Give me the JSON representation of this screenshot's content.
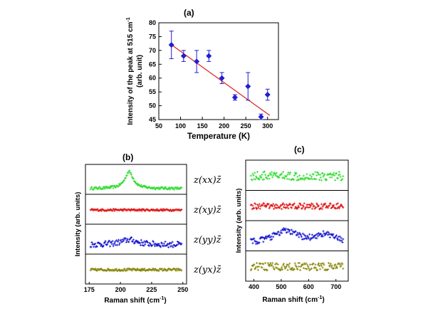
{
  "chart_data": [
    {
      "id": "a",
      "type": "scatter",
      "panel_label": "(a)",
      "xlabel": "Temperature (K)",
      "ylabel_line1": "Intensity of the peak at 515 cm",
      "ylabel_sup": "-1",
      "ylabel_line2": "(arb. unit)",
      "xlim": [
        50,
        325
      ],
      "ylim": [
        45,
        80
      ],
      "xticks": [
        50,
        100,
        150,
        200,
        250,
        300
      ],
      "yticks": [
        45,
        50,
        55,
        60,
        65,
        70,
        75,
        80
      ],
      "points": [
        {
          "x": 79,
          "y": 72,
          "err": 5
        },
        {
          "x": 107,
          "y": 68,
          "err": 2
        },
        {
          "x": 137,
          "y": 66,
          "err": 4
        },
        {
          "x": 165,
          "y": 68,
          "err": 2
        },
        {
          "x": 195,
          "y": 60,
          "err": 2
        },
        {
          "x": 225,
          "y": 53,
          "err": 1
        },
        {
          "x": 255,
          "y": 57,
          "err": 5
        },
        {
          "x": 285,
          "y": 46,
          "err": 1
        },
        {
          "x": 300,
          "y": 54,
          "err": 2
        }
      ],
      "fit_line": {
        "x": [
          75,
          305
        ],
        "y": [
          72.5,
          46.5
        ]
      },
      "marker_color": "#1f1fd0",
      "fit_color": "#e02020"
    },
    {
      "id": "b",
      "type": "stacked-spectra",
      "panel_label": "(b)",
      "xlabel": "Raman shift (cm",
      "xlabel_sup": "-1",
      "xlabel_end": ")",
      "ylabel": "Intensity (arb. units)",
      "xlim": [
        172,
        253
      ],
      "xticks": [
        175,
        200,
        225,
        250
      ],
      "spectra": [
        {
          "geometry": "z(xx)z̄",
          "color": "#33dd33",
          "baseline": 0.15,
          "noise": 0.05,
          "peaks": [
            {
              "center": 207,
              "width": 4,
              "height": 0.7
            }
          ]
        },
        {
          "geometry": "z(xy)z̄",
          "color": "#e01818",
          "baseline": 0.5,
          "noise": 0.04,
          "peaks": []
        },
        {
          "geometry": "z(yy)z̄",
          "color": "#1a1ad0",
          "baseline": 0.3,
          "noise": 0.12,
          "peaks": [
            {
              "center": 207,
              "width": 8,
              "height": 0.2
            }
          ]
        },
        {
          "geometry": "z(yx)z̄",
          "color": "#8a8a10",
          "baseline": 0.5,
          "noise": 0.05,
          "peaks": []
        }
      ]
    },
    {
      "id": "c",
      "type": "stacked-spectra",
      "panel_label": "(c)",
      "xlabel": "Raman shift (cm",
      "xlabel_sup": "-1",
      "xlabel_end": ")",
      "ylabel": "Intensity (arb. units)",
      "xlim": [
        370,
        745
      ],
      "xticks": [
        400,
        500,
        600,
        700
      ],
      "spectra": [
        {
          "color": "#33dd33",
          "baseline": 0.5,
          "noise": 0.18,
          "peaks": []
        },
        {
          "color": "#e01818",
          "baseline": 0.5,
          "noise": 0.12,
          "peaks": []
        },
        {
          "color": "#1a1ad0",
          "baseline": 0.2,
          "noise": 0.12,
          "peaks": [
            {
              "center": 515,
              "width": 55,
              "height": 0.5
            },
            {
              "center": 660,
              "width": 45,
              "height": 0.35
            }
          ]
        },
        {
          "color": "#8a8a10",
          "baseline": 0.5,
          "noise": 0.15,
          "peaks": []
        }
      ]
    }
  ]
}
